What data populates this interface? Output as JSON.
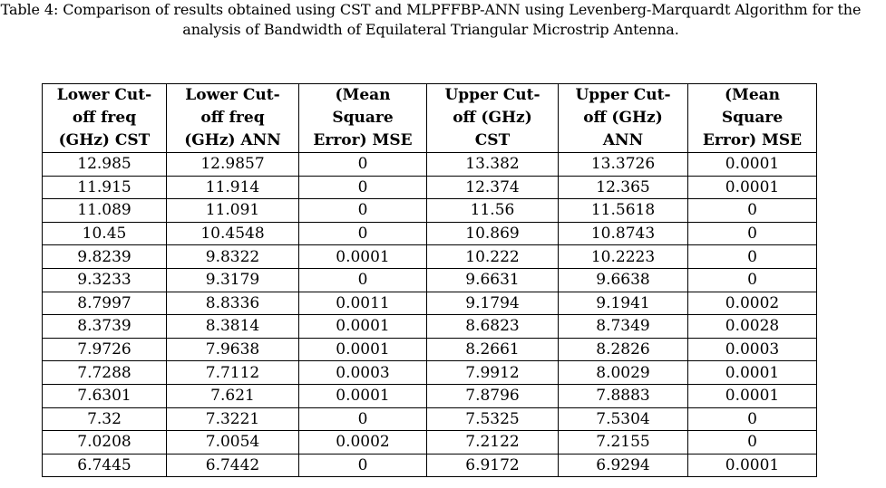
{
  "caption": {
    "line1": "Table 4: Comparison of results obtained using CST and MLPFFBP-ANN using Levenberg-Marquardt Algorithm for the",
    "line2": "analysis of Bandwidth of Equilateral Triangular Microstrip Antenna."
  },
  "table": {
    "headers": [
      [
        "Lower Cut-",
        "off freq",
        "(GHz) CST"
      ],
      [
        "Lower Cut-",
        "off freq",
        "(GHz) ANN"
      ],
      [
        "(Mean",
        "Square",
        "Error) MSE"
      ],
      [
        "Upper Cut-",
        "off (GHz)",
        "CST"
      ],
      [
        "Upper Cut-",
        "off (GHz)",
        "ANN"
      ],
      [
        "(Mean",
        "Square",
        "Error) MSE"
      ]
    ],
    "rows": [
      [
        "12.985",
        "12.9857",
        "0",
        "13.382",
        "13.3726",
        "0.0001"
      ],
      [
        "11.915",
        "11.914",
        "0",
        "12.374",
        "12.365",
        "0.0001"
      ],
      [
        "11.089",
        "11.091",
        "0",
        "11.56",
        "11.5618",
        "0"
      ],
      [
        "10.45",
        "10.4548",
        "0",
        "10.869",
        "10.8743",
        "0"
      ],
      [
        "9.8239",
        "9.8322",
        "0.0001",
        "10.222",
        "10.2223",
        "0"
      ],
      [
        "9.3233",
        "9.3179",
        "0",
        "9.6631",
        "9.6638",
        "0"
      ],
      [
        "8.7997",
        "8.8336",
        "0.0011",
        "9.1794",
        "9.1941",
        "0.0002"
      ],
      [
        "8.3739",
        "8.3814",
        "0.0001",
        "8.6823",
        "8.7349",
        "0.0028"
      ],
      [
        "7.9726",
        "7.9638",
        "0.0001",
        "8.2661",
        "8.2826",
        "0.0003"
      ],
      [
        "7.7288",
        "7.7112",
        "0.0003",
        "7.9912",
        "8.0029",
        "0.0001"
      ],
      [
        "7.6301",
        "7.621",
        "0.0001",
        "7.8796",
        "7.8883",
        "0.0001"
      ],
      [
        "7.32",
        "7.3221",
        "0",
        "7.5325",
        "7.5304",
        "0"
      ],
      [
        "7.0208",
        "7.0054",
        "0.0002",
        "7.2122",
        "7.2155",
        "0"
      ],
      [
        "6.7445",
        "6.7442",
        "0",
        "6.9172",
        "6.9294",
        "0.0001"
      ]
    ]
  }
}
